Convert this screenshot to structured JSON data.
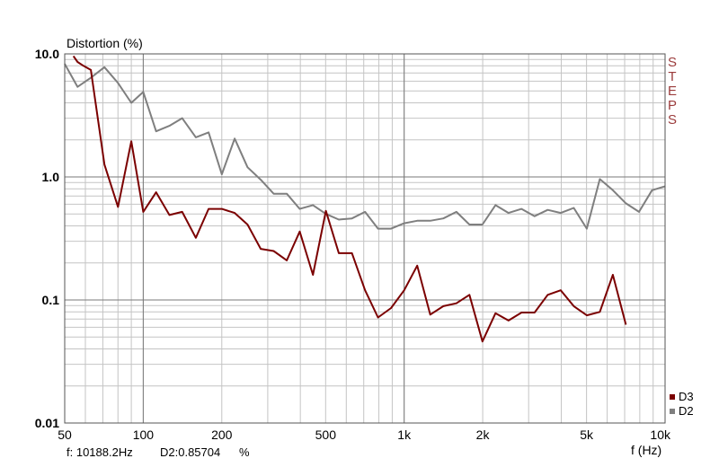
{
  "chart_data": {
    "type": "line",
    "title": "",
    "ylabel": "Distortion (%)",
    "xlabel": "f (Hz)",
    "side_label": "STEPS",
    "x_scale": "log",
    "y_scale": "log",
    "xlim": [
      50,
      10000
    ],
    "ylim": [
      0.01,
      10
    ],
    "grid": true,
    "legend_position": "bottom-right",
    "x_ticks": [
      {
        "value": 50,
        "label": "50"
      },
      {
        "value": 100,
        "label": "100"
      },
      {
        "value": 200,
        "label": "200"
      },
      {
        "value": 500,
        "label": "500"
      },
      {
        "value": 1000,
        "label": "1k"
      },
      {
        "value": 2000,
        "label": "2k"
      },
      {
        "value": 5000,
        "label": "5k"
      },
      {
        "value": 10000,
        "label": "10k"
      }
    ],
    "y_ticks": [
      {
        "value": 10,
        "label": "10.0"
      },
      {
        "value": 1,
        "label": "1.0"
      },
      {
        "value": 0.1,
        "label": "0.1"
      },
      {
        "value": 0.01,
        "label": "0.01"
      }
    ],
    "series": [
      {
        "name": "D3",
        "color": "#7b0000",
        "points": [
          [
            54,
            9.6
          ],
          [
            56,
            8.6
          ],
          [
            59,
            8.0
          ],
          [
            63,
            7.4
          ],
          [
            71,
            1.26
          ],
          [
            80,
            0.57
          ],
          [
            90,
            1.95
          ],
          [
            100,
            0.52
          ],
          [
            112,
            0.75
          ],
          [
            126,
            0.49
          ],
          [
            141,
            0.52
          ],
          [
            159,
            0.32
          ],
          [
            178,
            0.55
          ],
          [
            200,
            0.55
          ],
          [
            224,
            0.51
          ],
          [
            251,
            0.41
          ],
          [
            282,
            0.26
          ],
          [
            316,
            0.25
          ],
          [
            355,
            0.21
          ],
          [
            398,
            0.36
          ],
          [
            447,
            0.16
          ],
          [
            501,
            0.53
          ],
          [
            562,
            0.24
          ],
          [
            631,
            0.24
          ],
          [
            708,
            0.12
          ],
          [
            794,
            0.072
          ],
          [
            891,
            0.086
          ],
          [
            1000,
            0.12
          ],
          [
            1122,
            0.19
          ],
          [
            1259,
            0.076
          ],
          [
            1413,
            0.089
          ],
          [
            1585,
            0.094
          ],
          [
            1778,
            0.11
          ],
          [
            1995,
            0.046
          ],
          [
            2239,
            0.078
          ],
          [
            2512,
            0.068
          ],
          [
            2818,
            0.079
          ],
          [
            3162,
            0.079
          ],
          [
            3548,
            0.11
          ],
          [
            3981,
            0.12
          ],
          [
            4467,
            0.089
          ],
          [
            5012,
            0.075
          ],
          [
            5623,
            0.08
          ],
          [
            6310,
            0.16
          ],
          [
            7079,
            0.063
          ]
        ]
      },
      {
        "name": "D2",
        "color": "#7f7f7f",
        "points": [
          [
            50,
            8.3
          ],
          [
            56,
            5.4
          ],
          [
            63,
            6.4
          ],
          [
            71,
            7.8
          ],
          [
            80,
            5.8
          ],
          [
            90,
            4.0
          ],
          [
            100,
            4.9
          ],
          [
            112,
            2.35
          ],
          [
            126,
            2.6
          ],
          [
            141,
            3.0
          ],
          [
            159,
            2.1
          ],
          [
            178,
            2.3
          ],
          [
            200,
            1.05
          ],
          [
            224,
            2.05
          ],
          [
            251,
            1.2
          ],
          [
            282,
            0.95
          ],
          [
            316,
            0.73
          ],
          [
            355,
            0.73
          ],
          [
            398,
            0.55
          ],
          [
            447,
            0.59
          ],
          [
            501,
            0.5
          ],
          [
            562,
            0.45
          ],
          [
            631,
            0.46
          ],
          [
            708,
            0.52
          ],
          [
            794,
            0.38
          ],
          [
            891,
            0.38
          ],
          [
            1000,
            0.42
          ],
          [
            1122,
            0.44
          ],
          [
            1259,
            0.44
          ],
          [
            1413,
            0.46
          ],
          [
            1585,
            0.52
          ],
          [
            1778,
            0.41
          ],
          [
            1995,
            0.41
          ],
          [
            2239,
            0.59
          ],
          [
            2512,
            0.51
          ],
          [
            2818,
            0.55
          ],
          [
            3162,
            0.48
          ],
          [
            3548,
            0.54
          ],
          [
            3981,
            0.51
          ],
          [
            4467,
            0.56
          ],
          [
            5012,
            0.38
          ],
          [
            5623,
            0.96
          ],
          [
            6310,
            0.78
          ],
          [
            7079,
            0.61
          ],
          [
            7943,
            0.52
          ],
          [
            8913,
            0.78
          ],
          [
            10000,
            0.84
          ]
        ]
      }
    ],
    "readout": {
      "freq_label": "f: 10188.2Hz",
      "d2_label": "D2:0.85704",
      "unit": "%"
    }
  }
}
